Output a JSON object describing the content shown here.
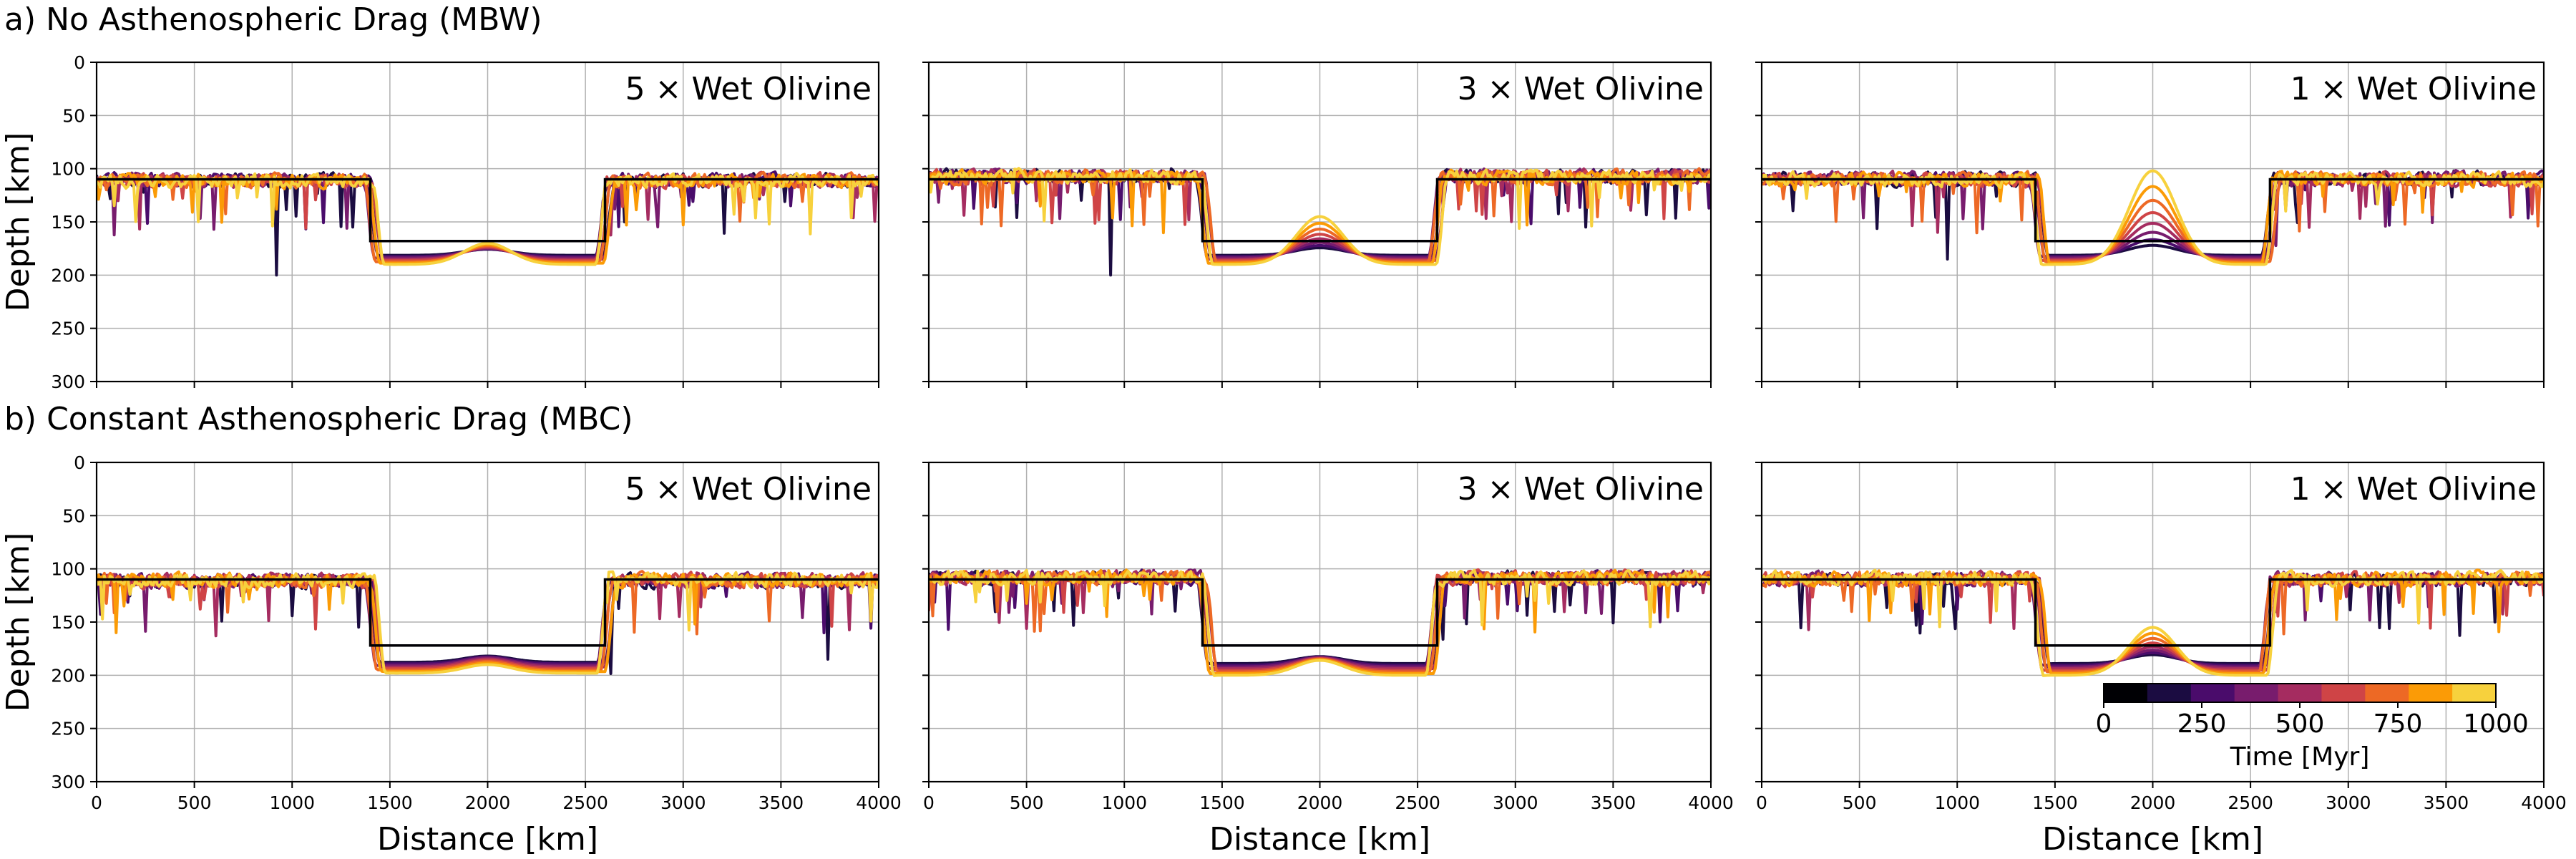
{
  "figure": {
    "row_titles": [
      "a) No Asthenospheric Drag (MBW)",
      "b) Constant Asthenospheric Drag (MBC)"
    ]
  },
  "chart_data": [
    {
      "type": "line",
      "row": 0,
      "col": 0,
      "annotation": "5 × Wet Olivine",
      "xlabel": "Distance [km]",
      "ylabel": "Depth [km]",
      "xlim": [
        0,
        4000
      ],
      "ylim": [
        300,
        0
      ],
      "y_inverted": true,
      "xticks": [
        0,
        500,
        1000,
        1500,
        2000,
        2500,
        3000,
        3500,
        4000
      ],
      "yticks": [
        0,
        50,
        100,
        150,
        200,
        250,
        300
      ],
      "grid": true,
      "initial_profile": {
        "time_myr": 0,
        "x": [
          0,
          1400,
          1400,
          2600,
          2600,
          4000
        ],
        "depth": [
          110,
          110,
          168,
          168,
          110,
          110
        ]
      },
      "late_profile": {
        "craton_depth": 110,
        "basin_depth": 190,
        "bump_depth": 170,
        "spike_x": 920,
        "spike_depth": 200
      }
    },
    {
      "type": "line",
      "row": 0,
      "col": 1,
      "annotation": "3 × Wet Olivine",
      "xlabel": "Distance [km]",
      "ylabel": "Depth [km]",
      "xlim": [
        0,
        4000
      ],
      "ylim": [
        300,
        0
      ],
      "y_inverted": true,
      "xticks": [
        0,
        500,
        1000,
        1500,
        2000,
        2500,
        3000,
        3500,
        4000
      ],
      "yticks": [
        0,
        50,
        100,
        150,
        200,
        250,
        300
      ],
      "grid": true,
      "initial_profile": {
        "time_myr": 0,
        "x": [
          0,
          1400,
          1400,
          2600,
          2600,
          4000
        ],
        "depth": [
          110,
          110,
          168,
          168,
          110,
          110
        ]
      },
      "late_profile": {
        "craton_depth": 110,
        "basin_depth": 190,
        "bump_depth": 145,
        "spike_x": 930,
        "spike_depth": 200
      }
    },
    {
      "type": "line",
      "row": 0,
      "col": 2,
      "annotation": "1 × Wet Olivine",
      "xlabel": "Distance [km]",
      "ylabel": "Depth [km]",
      "xlim": [
        0,
        4000
      ],
      "ylim": [
        300,
        0
      ],
      "y_inverted": true,
      "xticks": [
        0,
        500,
        1000,
        1500,
        2000,
        2500,
        3000,
        3500,
        4000
      ],
      "yticks": [
        0,
        50,
        100,
        150,
        200,
        250,
        300
      ],
      "grid": true,
      "initial_profile": {
        "time_myr": 0,
        "x": [
          0,
          1400,
          1400,
          2600,
          2600,
          4000
        ],
        "depth": [
          110,
          110,
          168,
          168,
          110,
          110
        ]
      },
      "late_profile": {
        "craton_depth": 110,
        "basin_depth": 190,
        "bump_depth": 102,
        "spike_x": 950,
        "spike_depth": 185
      }
    },
    {
      "type": "line",
      "row": 1,
      "col": 0,
      "annotation": "5 × Wet Olivine",
      "xlabel": "Distance [km]",
      "ylabel": "Depth [km]",
      "xlim": [
        0,
        4000
      ],
      "ylim": [
        300,
        0
      ],
      "y_inverted": true,
      "xticks": [
        0,
        500,
        1000,
        1500,
        2000,
        2500,
        3000,
        3500,
        4000
      ],
      "yticks": [
        0,
        50,
        100,
        150,
        200,
        250,
        300
      ],
      "grid": true,
      "initial_profile": {
        "time_myr": 0,
        "x": [
          0,
          1400,
          1400,
          2600,
          2600,
          4000
        ],
        "depth": [
          110,
          110,
          172,
          172,
          110,
          110
        ]
      },
      "late_profile": {
        "craton_depth": 108,
        "basin_depth": 198,
        "bump_depth": 190,
        "spike_x": 3740,
        "spike_depth": 185
      }
    },
    {
      "type": "line",
      "row": 1,
      "col": 1,
      "annotation": "3 × Wet Olivine",
      "xlabel": "Distance [km]",
      "ylabel": "Depth [km]",
      "xlim": [
        0,
        4000
      ],
      "ylim": [
        300,
        0
      ],
      "y_inverted": true,
      "xticks": [
        0,
        500,
        1000,
        1500,
        2000,
        2500,
        3000,
        3500,
        4000
      ],
      "yticks": [
        0,
        50,
        100,
        150,
        200,
        250,
        300
      ],
      "grid": true,
      "initial_profile": {
        "time_myr": 0,
        "x": [
          0,
          1400,
          1400,
          2600,
          2600,
          4000
        ],
        "depth": [
          110,
          110,
          172,
          172,
          110,
          110
        ]
      },
      "late_profile": {
        "craton_depth": 110,
        "basin_depth": 200,
        "bump_depth": 186,
        "spike_x": 3200,
        "spike_depth": 140
      }
    },
    {
      "type": "line",
      "row": 1,
      "col": 2,
      "annotation": "1 × Wet Olivine",
      "xlabel": "Distance [km]",
      "ylabel": "Depth [km]",
      "xlim": [
        0,
        4000
      ],
      "ylim": [
        300,
        0
      ],
      "y_inverted": true,
      "xticks": [
        0,
        500,
        1000,
        1500,
        2000,
        2500,
        3000,
        3500,
        4000
      ],
      "yticks": [
        0,
        50,
        100,
        150,
        200,
        250,
        300
      ],
      "grid": true,
      "initial_profile": {
        "time_myr": 0,
        "x": [
          0,
          1400,
          1400,
          2600,
          2600,
          4000
        ],
        "depth": [
          110,
          110,
          172,
          172,
          110,
          110
        ]
      },
      "late_profile": {
        "craton_depth": 108,
        "basin_depth": 200,
        "bump_depth": 155,
        "spike_x": 3750,
        "spike_depth": 150
      }
    }
  ],
  "series_times_myr": [
    0,
    125,
    250,
    375,
    500,
    625,
    750,
    875,
    1000
  ],
  "colorbar": {
    "label": "Time [Myr]",
    "range": [
      0,
      1000
    ],
    "ticks": [
      "0",
      "250",
      "500",
      "750",
      "1000"
    ],
    "tick_values": [
      0,
      250,
      500,
      750,
      1000
    ],
    "colormap": "inferno",
    "colors": [
      "#000004",
      "#1b0c41",
      "#4a0c6b",
      "#781c6d",
      "#a52c60",
      "#cf4446",
      "#ed6925",
      "#fb9b06",
      "#f7d13d"
    ]
  }
}
